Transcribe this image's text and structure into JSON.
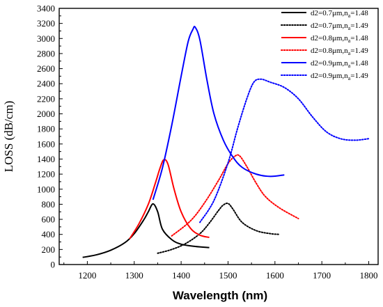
{
  "chart_data": {
    "type": "line",
    "title": "",
    "xlabel": "Wavelength (nm)",
    "ylabel": "LOSS (dB/cm)",
    "xlim": [
      1140,
      1820
    ],
    "ylim": [
      0,
      3400
    ],
    "xticks": [
      1200,
      1300,
      1400,
      1500,
      1600,
      1700,
      1800
    ],
    "yticks": [
      0,
      200,
      400,
      600,
      800,
      1000,
      1200,
      1400,
      1600,
      1800,
      2000,
      2200,
      2400,
      2600,
      2800,
      3000,
      3200,
      3400
    ],
    "grid": false,
    "legend_position": "top-right",
    "series": [
      {
        "name": "d2=0.7μm,na=1.48",
        "legend_main": "d2=0.7μm,n",
        "legend_sub": "a",
        "legend_tail": "=1.48",
        "color": "#000000",
        "style": "solid",
        "x": [
          1190,
          1220,
          1250,
          1280,
          1300,
          1320,
          1330,
          1340,
          1350,
          1360,
          1380,
          1400,
          1430,
          1460
        ],
        "y": [
          95,
          130,
          190,
          290,
          410,
          590,
          700,
          805,
          700,
          470,
          330,
          270,
          240,
          225
        ]
      },
      {
        "name": "d2=0.7μm,na=1.49",
        "legend_main": "d2=0.7μm,n",
        "legend_sub": "a",
        "legend_tail": "=1.49",
        "color": "#000000",
        "style": "dotted",
        "x": [
          1350,
          1380,
          1410,
          1440,
          1460,
          1480,
          1490,
          1500,
          1510,
          1530,
          1560,
          1590,
          1610
        ],
        "y": [
          150,
          200,
          280,
          410,
          550,
          720,
          790,
          810,
          740,
          560,
          450,
          410,
          400
        ]
      },
      {
        "name": "d2=0.8μm,na=1.48",
        "legend_main": "d2=0.8μm,n",
        "legend_sub": "a",
        "legend_tail": "=1.48",
        "color": "#ff0000",
        "style": "solid",
        "x": [
          1290,
          1310,
          1330,
          1345,
          1355,
          1363,
          1372,
          1385,
          1400,
          1420,
          1440,
          1460
        ],
        "y": [
          340,
          540,
          800,
          1080,
          1280,
          1390,
          1330,
          1000,
          700,
          480,
          390,
          360
        ]
      },
      {
        "name": "d2=0.8μm,na=1.49",
        "legend_main": "d2=0.8μm,n",
        "legend_sub": "a",
        "legend_tail": "=1.49",
        "color": "#ff0000",
        "style": "dotted",
        "x": [
          1380,
          1420,
          1450,
          1480,
          1500,
          1515,
          1525,
          1540,
          1560,
          1580,
          1610,
          1650
        ],
        "y": [
          380,
          580,
          820,
          1120,
          1340,
          1440,
          1440,
          1300,
          1080,
          900,
          750,
          610
        ]
      },
      {
        "name": "d2=0.9μm,na=1.48",
        "legend_main": "d2=0.9μm,n",
        "legend_sub": "a",
        "legend_tail": "=1.48",
        "color": "#0000ff",
        "style": "solid",
        "x": [
          1340,
          1360,
          1380,
          1400,
          1415,
          1425,
          1430,
          1440,
          1455,
          1470,
          1490,
          1510,
          1530,
          1560,
          1590,
          1620
        ],
        "y": [
          860,
          1280,
          1850,
          2500,
          2960,
          3120,
          3150,
          2980,
          2450,
          2000,
          1650,
          1430,
          1290,
          1200,
          1170,
          1190
        ]
      },
      {
        "name": "d2=0.9μm,na=1.49",
        "legend_main": "d2=0.9μm,n",
        "legend_sub": "a",
        "legend_tail": "=1.49",
        "color": "#0000ff",
        "style": "dotted",
        "x": [
          1440,
          1470,
          1500,
          1520,
          1540,
          1555,
          1570,
          1590,
          1620,
          1650,
          1680,
          1710,
          1740,
          1770,
          1800
        ],
        "y": [
          560,
          850,
          1350,
          1800,
          2200,
          2420,
          2460,
          2420,
          2350,
          2200,
          1960,
          1760,
          1670,
          1650,
          1670
        ]
      }
    ]
  }
}
